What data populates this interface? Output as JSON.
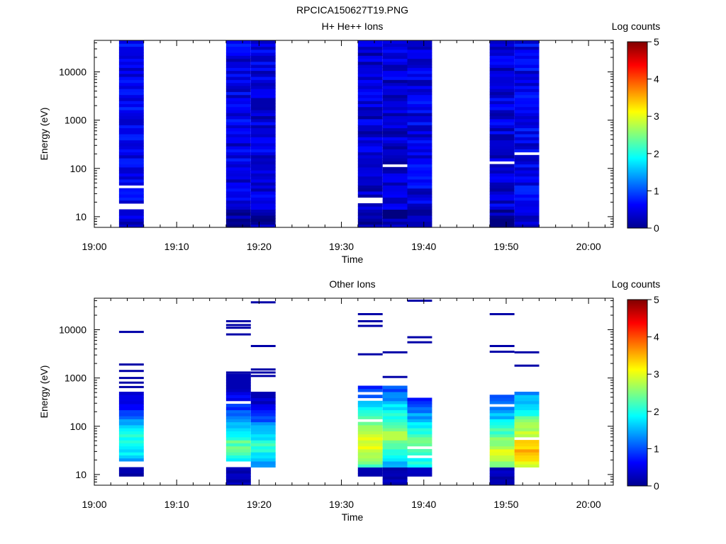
{
  "figure": {
    "title": "RPCICA150627T19.PNG"
  },
  "chart_data": [
    {
      "type": "heatmap",
      "title": "H+ He++ Ions",
      "xlabel": "Time",
      "ylabel": "Energy (eV)",
      "colorbar_label": "Log counts",
      "colorbar_ticks": [
        "0",
        "1",
        "2",
        "3",
        "4",
        "5"
      ],
      "colorbar_range": [
        0,
        5
      ],
      "x_ticks": [
        "19:00",
        "19:10",
        "19:20",
        "19:30",
        "19:40",
        "19:50",
        "20:00"
      ],
      "y_ticks": [
        "10",
        "100",
        "1000",
        "10000"
      ],
      "y_scale": "log",
      "y_range_eV": [
        6,
        45000
      ],
      "x_range": [
        "19:00",
        "20:03"
      ],
      "colormap": "jet",
      "bins": [
        {
          "start": "19:03",
          "end": "19:06",
          "min_eV": 6,
          "max_eV": 45000,
          "mean_log_counts": 0.55,
          "gaps_eV": [
            [
              15,
              20
            ],
            [
              37,
              42
            ]
          ]
        },
        {
          "start": "19:16",
          "end": "19:19",
          "min_eV": 6,
          "max_eV": 45000,
          "mean_log_counts": 0.5,
          "gaps_eV": []
        },
        {
          "start": "19:19",
          "end": "19:22",
          "min_eV": 6,
          "max_eV": 45000,
          "mean_log_counts": 0.45,
          "gaps_eV": []
        },
        {
          "start": "19:32",
          "end": "19:35",
          "min_eV": 6,
          "max_eV": 45000,
          "mean_log_counts": 0.4,
          "gaps_eV": [
            [
              20,
              25
            ]
          ]
        },
        {
          "start": "19:35",
          "end": "19:38",
          "min_eV": 6,
          "max_eV": 45000,
          "mean_log_counts": 0.4,
          "gaps_eV": [
            [
              42,
              46
            ],
            [
              105,
              115
            ]
          ]
        },
        {
          "start": "19:38",
          "end": "19:41",
          "min_eV": 6,
          "max_eV": 45000,
          "mean_log_counts": 0.5,
          "gaps_eV": []
        },
        {
          "start": "19:48",
          "end": "19:51",
          "min_eV": 6,
          "max_eV": 45000,
          "mean_log_counts": 0.45,
          "gaps_eV": [
            [
              125,
              135
            ]
          ]
        },
        {
          "start": "19:51",
          "end": "19:54",
          "min_eV": 6,
          "max_eV": 45000,
          "mean_log_counts": 0.55,
          "gaps_eV": [
            [
              195,
              210
            ]
          ]
        }
      ]
    },
    {
      "type": "heatmap",
      "title": "Other Ions",
      "xlabel": "Time",
      "ylabel": "Energy (eV)",
      "colorbar_label": "Log counts",
      "colorbar_ticks": [
        "0",
        "1",
        "2",
        "3",
        "4",
        "5"
      ],
      "colorbar_range": [
        0,
        5
      ],
      "x_ticks": [
        "19:00",
        "19:10",
        "19:20",
        "19:30",
        "19:40",
        "19:50",
        "20:00"
      ],
      "y_ticks": [
        "10",
        "100",
        "1000",
        "10000"
      ],
      "y_scale": "log",
      "y_range_eV": [
        6,
        45000
      ],
      "x_range": [
        "19:00",
        "20:03"
      ],
      "colormap": "jet",
      "bins": [
        {
          "start": "19:03",
          "end": "19:06",
          "dense_range_eV": [
            20,
            500
          ],
          "peak_eV": 45,
          "peak_log_counts": 2.2,
          "sparse_lines_eV": [
            9000,
            1900,
            1400,
            1000,
            800,
            650
          ],
          "low_blocks_eV": [
            [
              9,
              15
            ]
          ]
        },
        {
          "start": "19:16",
          "end": "19:19",
          "dense_range_eV": [
            20,
            1300
          ],
          "peak_eV": 40,
          "peak_log_counts": 2.4,
          "sparse_lines_eV": [
            15000,
            12500,
            11000,
            8000,
            1300
          ],
          "low_blocks_eV": [
            [
              6,
              15
            ]
          ]
        },
        {
          "start": "19:19",
          "end": "19:22",
          "dense_range_eV": [
            15,
            500
          ],
          "peak_eV": 40,
          "peak_log_counts": 2.1,
          "sparse_lines_eV": [
            37000,
            4600,
            1500,
            1300,
            1100
          ],
          "low_blocks_eV": []
        },
        {
          "start": "19:32",
          "end": "19:35",
          "dense_range_eV": [
            15,
            650
          ],
          "peak_eV": 45,
          "peak_log_counts": 3.1,
          "sparse_lines_eV": [
            21000,
            15000,
            12000,
            3100
          ],
          "low_blocks_eV": [
            [
              9,
              15
            ]
          ]
        },
        {
          "start": "19:35",
          "end": "19:38",
          "dense_range_eV": [
            15,
            650
          ],
          "peak_eV": 70,
          "peak_log_counts": 2.8,
          "sparse_lines_eV": [
            3400,
            1050
          ],
          "low_blocks_eV": [
            [
              6,
              15
            ]
          ]
        },
        {
          "start": "19:38",
          "end": "19:41",
          "dense_range_eV": [
            15,
            380
          ],
          "peak_eV": 40,
          "peak_log_counts": 2.6,
          "sparse_lines_eV": [
            40000,
            7000,
            5500
          ],
          "low_blocks_eV": [
            [
              9,
              15
            ]
          ]
        },
        {
          "start": "19:48",
          "end": "19:51",
          "dense_range_eV": [
            15,
            500
          ],
          "peak_eV": 30,
          "peak_log_counts": 3.0,
          "sparse_lines_eV": [
            21000,
            4600,
            3500
          ],
          "low_blocks_eV": [
            [
              6,
              15
            ]
          ]
        },
        {
          "start": "19:51",
          "end": "19:54",
          "dense_range_eV": [
            15,
            550
          ],
          "peak_eV": 30,
          "peak_log_counts": 3.6,
          "sparse_lines_eV": [
            3400,
            1800
          ],
          "low_blocks_eV": []
        }
      ]
    }
  ]
}
